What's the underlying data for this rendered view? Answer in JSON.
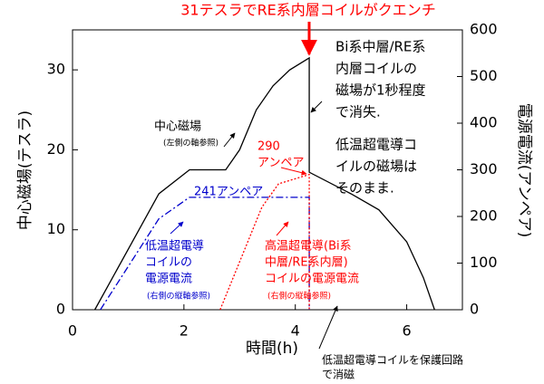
{
  "chart_data": {
    "type": "line",
    "title": "31テスラでRE系内層コイルがクエンチ",
    "x_label": "時間(h)",
    "y_label": "中心磁場(テスラ)",
    "y2_label": "電源電流(アンペア)",
    "xlim": [
      0,
      7
    ],
    "xticks": [
      0,
      2,
      4,
      6
    ],
    "ylim": [
      0,
      35
    ],
    "yticks": [
      0,
      10,
      20,
      30
    ],
    "y2lim": [
      0,
      600
    ],
    "y2ticks": [
      0,
      100,
      200,
      300,
      400,
      500,
      600
    ],
    "series": [
      {
        "color": "#000000",
        "style": "solid",
        "x": [
          0.4,
          1.55,
          2.1,
          2.75,
          3.0,
          3.3,
          3.6,
          3.9,
          4.25,
          4.25,
          5.0,
          5.5,
          6.0,
          6.3,
          6.5
        ],
        "values": [
          0,
          14.5,
          17.5,
          17.5,
          20,
          25,
          28,
          30,
          31.5,
          17.2,
          14.5,
          12.5,
          8.5,
          4,
          0
        ]
      },
      {
        "color": "#0000cc",
        "style": "dashdot",
        "axis": "y2",
        "x": [
          0.5,
          1.55,
          2.1,
          4.25,
          4.25
        ],
        "values": [
          0,
          195,
          241,
          241,
          0
        ]
      },
      {
        "color": "#ff0000",
        "style": "dotted",
        "axis": "y2",
        "x": [
          2.65,
          3.4,
          3.7,
          4.25,
          4.25
        ],
        "values": [
          0,
          220,
          270,
          290,
          0
        ]
      }
    ],
    "annotations": [
      {
        "lines": [
          "Bi系中層/RE系",
          "内層コイルの",
          "磁場が1秒程度",
          "で消失."
        ],
        "color": "#000000"
      },
      {
        "lines": [
          "低温超電導コ",
          "イルの磁場は",
          "そのまま."
        ],
        "color": "#000000"
      },
      {
        "lines": [
          "中心磁場"
        ],
        "color": "#000000"
      },
      {
        "lines": [
          "(左側の軸参照)"
        ],
        "color": "#000000"
      },
      {
        "lines": [
          "290",
          "アンペア"
        ],
        "color": "#ff0000"
      },
      {
        "lines": [
          "241アンペア"
        ],
        "color": "#0000cc"
      },
      {
        "lines": [
          "低温超電導",
          "コイルの",
          "電源電流"
        ],
        "color": "#0000cc"
      },
      {
        "lines": [
          "(右側の縦軸参照)"
        ],
        "color": "#0000cc"
      },
      {
        "lines": [
          "高温超電導(Bi系",
          "中層/RE系内層)",
          "コイルの電源電流"
        ],
        "color": "#ff0000"
      },
      {
        "lines": [
          "(右側の縦軸参照)"
        ],
        "color": "#ff0000"
      },
      {
        "lines": [
          "低温超電導コイルを保護回路",
          "で消磁"
        ],
        "color": "#000000"
      }
    ]
  }
}
